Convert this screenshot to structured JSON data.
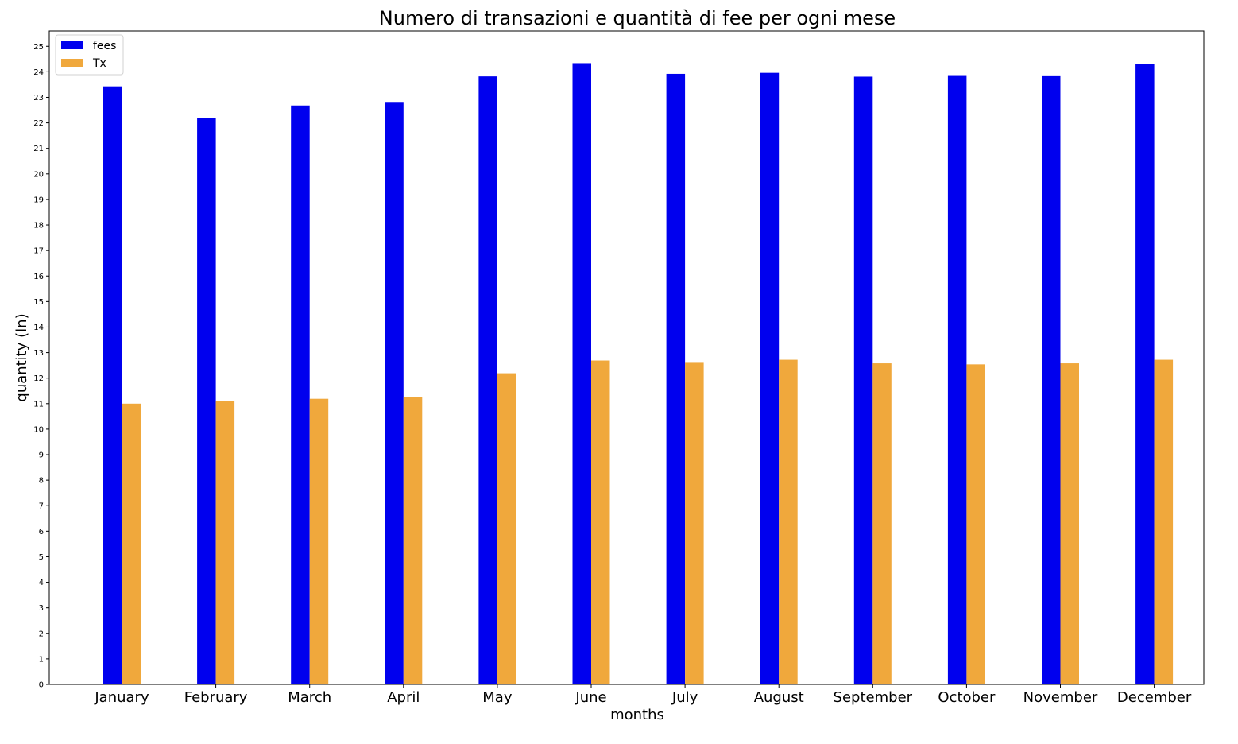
{
  "chart_data": {
    "type": "bar",
    "title": "Numero di transazioni e quantità di fee per ogni mese",
    "xlabel": "months",
    "ylabel": "quantity (ln)",
    "categories": [
      "January",
      "February",
      "March",
      "April",
      "May",
      "June",
      "July",
      "August",
      "September",
      "October",
      "November",
      "December"
    ],
    "series": [
      {
        "name": "fees",
        "color": "#0000ee",
        "values": [
          23.43,
          22.18,
          22.68,
          22.82,
          23.82,
          24.34,
          23.92,
          23.96,
          23.81,
          23.87,
          23.86,
          24.31
        ]
      },
      {
        "name": "Tx",
        "color": "#f0a83c",
        "values": [
          11.0,
          11.1,
          11.19,
          11.26,
          12.19,
          12.69,
          12.6,
          12.72,
          12.58,
          12.54,
          12.58,
          12.72
        ]
      }
    ],
    "ylim": [
      0,
      25.6
    ],
    "yticks": [
      0,
      1,
      2,
      3,
      4,
      5,
      6,
      7,
      8,
      9,
      10,
      11,
      12,
      13,
      14,
      15,
      16,
      17,
      18,
      19,
      20,
      21,
      22,
      23,
      24,
      25
    ],
    "grid": false,
    "legend_position": "top-left"
  }
}
